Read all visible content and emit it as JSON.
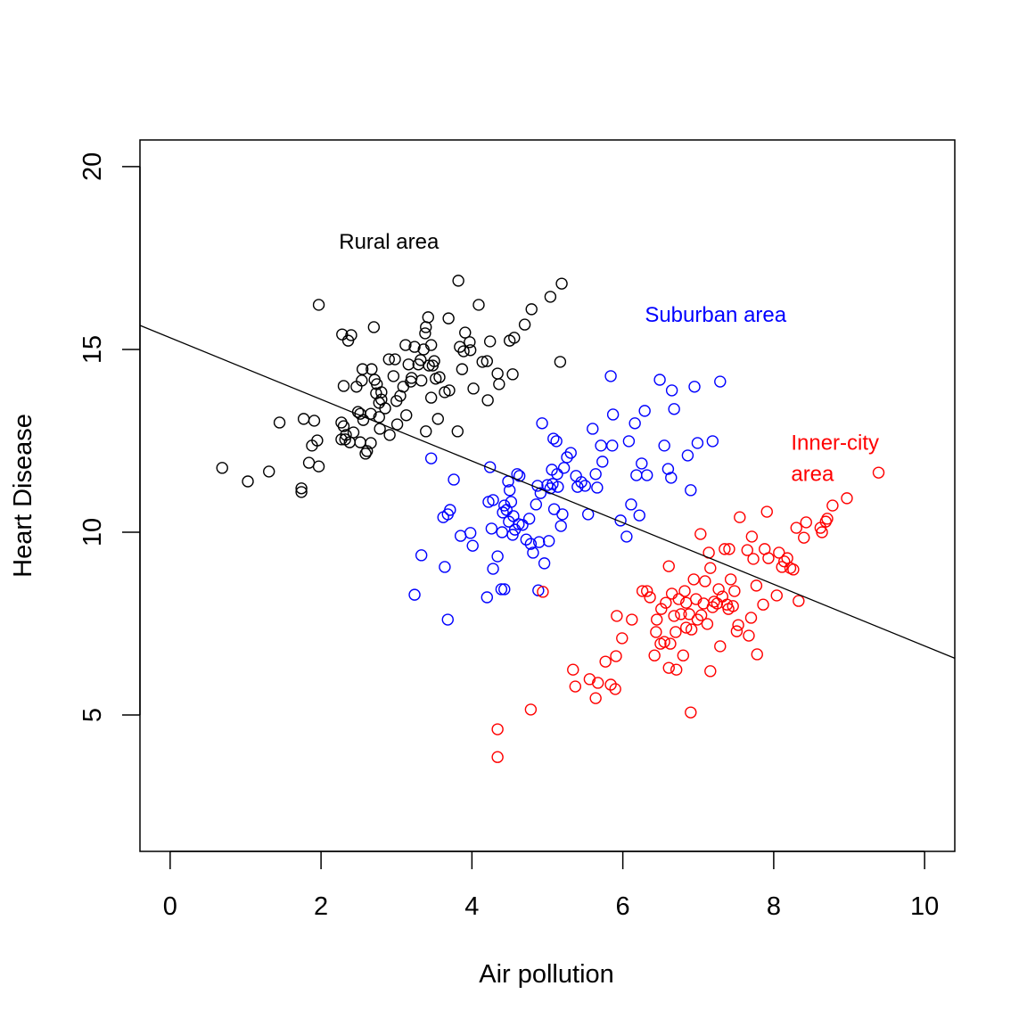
{
  "chart_data": {
    "type": "scatter",
    "title": "",
    "xlabel": "Air pollution",
    "ylabel": "Heart Disease",
    "xlim": [
      -0.4,
      10.4
    ],
    "ylim": [
      1.27,
      20.73
    ],
    "xticks": [
      0,
      2,
      4,
      6,
      8,
      10
    ],
    "xtick_labels": [
      "0",
      "2",
      "4",
      "6",
      "8",
      "10"
    ],
    "yticks": [
      5,
      10,
      15,
      20
    ],
    "ytick_labels": [
      "5",
      "10",
      "15",
      "20"
    ],
    "grid": false,
    "regression_line": {
      "intercept": 15.32,
      "slope": -0.843,
      "color": "#000000"
    },
    "annotations": [
      {
        "text": "Rural area",
        "x": 2.9,
        "y": 17.95,
        "color": "#000000",
        "align": "middle"
      },
      {
        "text": "Suburban area",
        "x": 7.23,
        "y": 15.95,
        "color": "#0000FF",
        "align": "middle"
      },
      {
        "text": "Inner-city",
        "x": 8.23,
        "y": 12.45,
        "color": "#FF0000",
        "align": "start"
      },
      {
        "text": "area",
        "x": 8.23,
        "y": 11.6,
        "color": "#FF0000",
        "align": "start"
      }
    ],
    "series": [
      {
        "name": "Rural area",
        "color": "#000000",
        "points": [
          [
            0.69,
            11.76
          ],
          [
            1.03,
            11.39
          ],
          [
            1.31,
            11.66
          ],
          [
            1.45,
            13.0
          ],
          [
            1.74,
            11.2
          ],
          [
            1.74,
            11.1
          ],
          [
            1.77,
            13.1
          ],
          [
            1.84,
            11.9
          ],
          [
            1.88,
            12.37
          ],
          [
            1.91,
            13.05
          ],
          [
            1.95,
            12.51
          ],
          [
            1.97,
            11.8
          ],
          [
            1.97,
            16.22
          ],
          [
            2.28,
            15.41
          ],
          [
            2.36,
            15.24
          ],
          [
            2.4,
            15.39
          ],
          [
            2.3,
            14.0
          ],
          [
            2.27,
            13.0
          ],
          [
            2.3,
            12.9
          ],
          [
            2.32,
            12.54
          ],
          [
            2.38,
            12.46
          ],
          [
            2.43,
            12.73
          ],
          [
            2.47,
            13.98
          ],
          [
            2.49,
            13.29
          ],
          [
            2.52,
            12.46
          ],
          [
            2.54,
            14.15
          ],
          [
            2.55,
            14.46
          ],
          [
            2.56,
            13.07
          ],
          [
            2.59,
            12.15
          ],
          [
            2.61,
            12.22
          ],
          [
            2.66,
            13.24
          ],
          [
            2.66,
            12.44
          ],
          [
            2.67,
            14.46
          ],
          [
            2.7,
            15.61
          ],
          [
            2.71,
            14.17
          ],
          [
            2.73,
            13.8
          ],
          [
            2.74,
            14.05
          ],
          [
            2.77,
            13.15
          ],
          [
            2.77,
            13.54
          ],
          [
            2.78,
            12.83
          ],
          [
            2.8,
            13.63
          ],
          [
            2.85,
            13.39
          ],
          [
            2.9,
            14.73
          ],
          [
            2.91,
            12.66
          ],
          [
            2.96,
            14.27
          ],
          [
            2.98,
            14.73
          ],
          [
            3.01,
            12.95
          ],
          [
            3.05,
            13.73
          ],
          [
            3.09,
            13.98
          ],
          [
            3.13,
            13.2
          ],
          [
            3.12,
            15.12
          ],
          [
            3.16,
            14.59
          ],
          [
            3.19,
            14.12
          ],
          [
            3.2,
            14.22
          ],
          [
            3.24,
            15.07
          ],
          [
            3.29,
            14.59
          ],
          [
            3.32,
            14.71
          ],
          [
            3.33,
            14.15
          ],
          [
            3.36,
            15.0
          ],
          [
            3.39,
            15.61
          ],
          [
            3.38,
            15.44
          ],
          [
            3.42,
            15.88
          ],
          [
            3.43,
            14.56
          ],
          [
            3.46,
            15.12
          ],
          [
            3.46,
            13.68
          ],
          [
            3.48,
            14.56
          ],
          [
            3.5,
            14.68
          ],
          [
            3.52,
            14.2
          ],
          [
            3.55,
            13.1
          ],
          [
            3.57,
            14.24
          ],
          [
            3.64,
            13.83
          ],
          [
            3.69,
            15.85
          ],
          [
            3.7,
            13.88
          ],
          [
            3.81,
            12.76
          ],
          [
            3.82,
            16.88
          ],
          [
            3.84,
            15.07
          ],
          [
            3.87,
            14.46
          ],
          [
            3.89,
            14.95
          ],
          [
            3.91,
            15.46
          ],
          [
            3.97,
            15.2
          ],
          [
            3.98,
            14.98
          ],
          [
            4.02,
            13.93
          ],
          [
            4.09,
            16.22
          ],
          [
            4.14,
            14.66
          ],
          [
            4.2,
            14.68
          ],
          [
            4.21,
            13.61
          ],
          [
            4.24,
            15.22
          ],
          [
            4.34,
            14.34
          ],
          [
            4.36,
            14.05
          ],
          [
            4.5,
            15.24
          ],
          [
            4.54,
            14.32
          ],
          [
            4.56,
            15.32
          ],
          [
            4.7,
            15.68
          ],
          [
            4.79,
            16.1
          ],
          [
            5.04,
            16.44
          ],
          [
            5.17,
            14.66
          ],
          [
            5.19,
            16.8
          ],
          [
            3.39,
            12.76
          ],
          [
            3.0,
            13.59
          ],
          [
            2.8,
            13.83
          ],
          [
            2.52,
            13.24
          ],
          [
            2.27,
            12.54
          ],
          [
            2.33,
            12.66
          ]
        ]
      },
      {
        "name": "Suburban area",
        "color": "#0000FF",
        "points": [
          [
            3.24,
            8.29
          ],
          [
            3.33,
            9.37
          ],
          [
            3.46,
            12.02
          ],
          [
            3.62,
            10.41
          ],
          [
            3.64,
            9.05
          ],
          [
            3.68,
            10.49
          ],
          [
            3.68,
            7.61
          ],
          [
            3.71,
            10.61
          ],
          [
            3.76,
            11.44
          ],
          [
            3.85,
            9.9
          ],
          [
            3.98,
            9.98
          ],
          [
            4.01,
            9.63
          ],
          [
            4.2,
            8.22
          ],
          [
            4.22,
            10.83
          ],
          [
            4.24,
            11.78
          ],
          [
            4.26,
            10.1
          ],
          [
            4.28,
            10.88
          ],
          [
            4.28,
            9.0
          ],
          [
            4.34,
            9.34
          ],
          [
            4.4,
            10.0
          ],
          [
            4.43,
            10.73
          ],
          [
            4.43,
            8.44
          ],
          [
            4.41,
            10.54
          ],
          [
            4.46,
            10.61
          ],
          [
            4.48,
            11.39
          ],
          [
            4.49,
            10.29
          ],
          [
            4.5,
            11.15
          ],
          [
            4.52,
            10.83
          ],
          [
            4.54,
            9.93
          ],
          [
            4.55,
            10.44
          ],
          [
            4.57,
            10.07
          ],
          [
            4.6,
            11.59
          ],
          [
            4.62,
            10.22
          ],
          [
            4.63,
            11.54
          ],
          [
            4.67,
            10.2
          ],
          [
            4.72,
            9.8
          ],
          [
            4.76,
            10.37
          ],
          [
            4.78,
            9.68
          ],
          [
            4.81,
            9.44
          ],
          [
            4.85,
            10.76
          ],
          [
            4.87,
            11.27
          ],
          [
            4.91,
            11.07
          ],
          [
            4.89,
            9.73
          ],
          [
            4.93,
            12.98
          ],
          [
            4.96,
            9.15
          ],
          [
            5.0,
            11.29
          ],
          [
            5.02,
            9.76
          ],
          [
            5.04,
            11.2
          ],
          [
            5.06,
            11.71
          ],
          [
            5.07,
            11.32
          ],
          [
            5.08,
            12.56
          ],
          [
            5.09,
            10.63
          ],
          [
            5.12,
            12.49
          ],
          [
            5.13,
            11.59
          ],
          [
            5.14,
            11.24
          ],
          [
            5.18,
            10.17
          ],
          [
            5.2,
            10.49
          ],
          [
            5.22,
            11.76
          ],
          [
            5.26,
            12.05
          ],
          [
            5.31,
            12.17
          ],
          [
            5.38,
            11.54
          ],
          [
            5.4,
            11.24
          ],
          [
            5.45,
            11.37
          ],
          [
            5.5,
            11.27
          ],
          [
            5.54,
            10.49
          ],
          [
            5.6,
            12.83
          ],
          [
            5.64,
            11.59
          ],
          [
            5.66,
            11.22
          ],
          [
            5.71,
            12.37
          ],
          [
            5.73,
            11.93
          ],
          [
            5.84,
            14.27
          ],
          [
            5.86,
            12.37
          ],
          [
            5.87,
            13.22
          ],
          [
            5.97,
            10.32
          ],
          [
            6.05,
            9.88
          ],
          [
            6.08,
            12.49
          ],
          [
            6.11,
            10.76
          ],
          [
            6.16,
            12.98
          ],
          [
            6.18,
            11.56
          ],
          [
            6.22,
            10.46
          ],
          [
            6.25,
            11.88
          ],
          [
            6.29,
            13.32
          ],
          [
            6.32,
            11.56
          ],
          [
            6.49,
            14.17
          ],
          [
            6.55,
            12.37
          ],
          [
            6.6,
            11.73
          ],
          [
            6.64,
            11.49
          ],
          [
            6.65,
            13.88
          ],
          [
            6.68,
            13.37
          ],
          [
            6.86,
            12.1
          ],
          [
            6.9,
            11.15
          ],
          [
            6.95,
            13.98
          ],
          [
            6.99,
            12.44
          ],
          [
            7.19,
            12.49
          ],
          [
            7.29,
            14.12
          ],
          [
            4.88,
            8.41
          ],
          [
            4.39,
            8.44
          ]
        ]
      },
      {
        "name": "Inner-city area",
        "color": "#FF0000",
        "points": [
          [
            4.34,
            4.61
          ],
          [
            4.34,
            3.85
          ],
          [
            4.78,
            5.15
          ],
          [
            4.94,
            8.37
          ],
          [
            5.34,
            6.24
          ],
          [
            5.37,
            5.78
          ],
          [
            5.56,
            5.98
          ],
          [
            5.64,
            5.46
          ],
          [
            5.67,
            5.88
          ],
          [
            5.77,
            6.46
          ],
          [
            5.84,
            5.83
          ],
          [
            5.91,
            6.61
          ],
          [
            5.9,
            5.71
          ],
          [
            5.92,
            7.71
          ],
          [
            5.99,
            7.1
          ],
          [
            6.12,
            7.61
          ],
          [
            6.26,
            8.39
          ],
          [
            6.32,
            8.39
          ],
          [
            6.36,
            8.22
          ],
          [
            6.42,
            6.63
          ],
          [
            6.44,
            7.27
          ],
          [
            6.45,
            7.61
          ],
          [
            6.5,
            6.95
          ],
          [
            6.51,
            7.9
          ],
          [
            6.55,
            7.0
          ],
          [
            6.57,
            8.07
          ],
          [
            6.61,
            9.07
          ],
          [
            6.61,
            6.29
          ],
          [
            6.63,
            6.95
          ],
          [
            6.65,
            8.32
          ],
          [
            6.68,
            7.71
          ],
          [
            6.7,
            7.27
          ],
          [
            6.71,
            6.24
          ],
          [
            6.74,
            8.17
          ],
          [
            6.77,
            7.76
          ],
          [
            6.8,
            6.63
          ],
          [
            6.82,
            8.39
          ],
          [
            6.84,
            8.07
          ],
          [
            6.84,
            7.39
          ],
          [
            6.88,
            7.76
          ],
          [
            6.9,
            5.07
          ],
          [
            6.91,
            7.34
          ],
          [
            6.94,
            8.71
          ],
          [
            6.97,
            8.17
          ],
          [
            6.99,
            7.61
          ],
          [
            7.03,
            9.95
          ],
          [
            7.04,
            7.73
          ],
          [
            7.07,
            8.05
          ],
          [
            7.09,
            8.66
          ],
          [
            7.12,
            7.49
          ],
          [
            7.14,
            9.44
          ],
          [
            7.16,
            6.2
          ],
          [
            7.16,
            9.02
          ],
          [
            7.19,
            7.95
          ],
          [
            7.21,
            8.1
          ],
          [
            7.25,
            8.05
          ],
          [
            7.27,
            8.44
          ],
          [
            7.29,
            6.88
          ],
          [
            7.32,
            8.24
          ],
          [
            7.35,
            9.54
          ],
          [
            7.38,
            8.02
          ],
          [
            7.4,
            7.9
          ],
          [
            7.41,
            9.54
          ],
          [
            7.43,
            8.71
          ],
          [
            7.46,
            7.98
          ],
          [
            7.48,
            8.39
          ],
          [
            7.51,
            7.29
          ],
          [
            7.53,
            7.46
          ],
          [
            7.55,
            10.41
          ],
          [
            7.65,
            9.51
          ],
          [
            7.67,
            7.17
          ],
          [
            7.7,
            7.66
          ],
          [
            7.71,
            9.88
          ],
          [
            7.73,
            9.27
          ],
          [
            7.77,
            8.54
          ],
          [
            7.78,
            6.66
          ],
          [
            7.86,
            8.02
          ],
          [
            7.88,
            9.54
          ],
          [
            7.91,
            10.56
          ],
          [
            7.93,
            9.29
          ],
          [
            8.04,
            8.27
          ],
          [
            8.07,
            9.44
          ],
          [
            8.11,
            9.05
          ],
          [
            8.14,
            9.2
          ],
          [
            8.18,
            9.29
          ],
          [
            8.22,
            9.02
          ],
          [
            8.26,
            8.98
          ],
          [
            8.3,
            10.12
          ],
          [
            8.33,
            8.12
          ],
          [
            8.4,
            9.85
          ],
          [
            8.43,
            10.27
          ],
          [
            8.62,
            10.12
          ],
          [
            8.64,
            10.0
          ],
          [
            8.69,
            10.29
          ],
          [
            8.71,
            10.37
          ],
          [
            8.78,
            10.73
          ],
          [
            8.97,
            10.93
          ],
          [
            9.39,
            11.63
          ]
        ]
      }
    ]
  }
}
